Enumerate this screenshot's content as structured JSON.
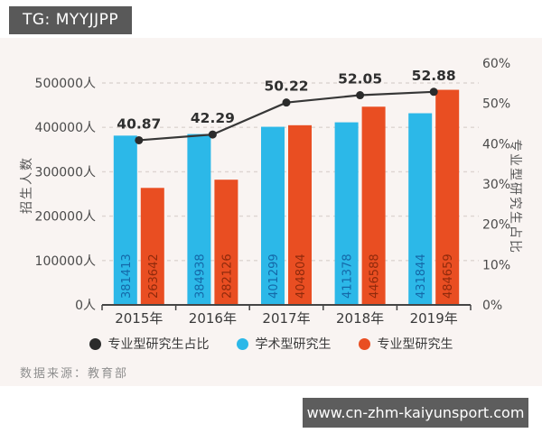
{
  "badge": {
    "text": "TG: MYYJJPP"
  },
  "source": {
    "label": "数据来源：教育部"
  },
  "watermark": {
    "url": "www.cn-zhm-kaiyunsport.com"
  },
  "colors": {
    "page_bg": "#ffffff",
    "panel_bg": "#f9f4f2",
    "badge_bg": "#595959",
    "grid": "#ddd5d1",
    "axis_line": "#454545",
    "axis_text": "#4a4a4a",
    "axis_title_text": "#555555"
  },
  "chart_data": {
    "type": "bar",
    "subtype": "grouped-bars-with-line",
    "categories": [
      "2015年",
      "2016年",
      "2017年",
      "2018年",
      "2019年"
    ],
    "series": [
      {
        "name": "学术型研究生",
        "kind": "bar",
        "color": "#2cb8e8",
        "value_label_color": "#1468a8",
        "values": [
          381413,
          384938,
          401299,
          411378,
          431844
        ]
      },
      {
        "name": "专业型研究生",
        "kind": "bar",
        "color": "#e94e22",
        "value_label_color": "#8f2a0c",
        "values": [
          263642,
          282126,
          404804,
          446588,
          484659
        ]
      },
      {
        "name": "专业型研究生占比",
        "kind": "line",
        "color": "#373737",
        "dot_color": "#2b2b2b",
        "value_label_color": "#2f2f2f",
        "values": [
          40.87,
          42.29,
          50.22,
          52.05,
          52.88
        ]
      }
    ],
    "left_axis": {
      "title": "招生人数",
      "unit": "人",
      "min": 0,
      "max": 500000,
      "ticks": [
        {
          "value": 0,
          "label": "0人"
        },
        {
          "value": 100000,
          "label": "100000人"
        },
        {
          "value": 200000,
          "label": "200000人"
        },
        {
          "value": 300000,
          "label": "300000人"
        },
        {
          "value": 400000,
          "label": "400000人"
        },
        {
          "value": 500000,
          "label": "500000人"
        }
      ]
    },
    "right_axis": {
      "title": "专业型研究生占比",
      "unit": "%",
      "min": 0,
      "max": 60,
      "ticks": [
        {
          "value": 0,
          "label": "0%"
        },
        {
          "value": 10,
          "label": "10%"
        },
        {
          "value": 20,
          "label": "20%"
        },
        {
          "value": 30,
          "label": "30%"
        },
        {
          "value": 40,
          "label": "40%"
        },
        {
          "value": 50,
          "label": "50%"
        },
        {
          "value": 60,
          "label": "60%"
        }
      ]
    },
    "legend": [
      {
        "label": "专业型研究生占比",
        "color": "#2b2b2b"
      },
      {
        "label": "学术型研究生",
        "color": "#2cb8e8"
      },
      {
        "label": "专业型研究生",
        "color": "#e94e22"
      }
    ],
    "grid": "horizontal-dashed",
    "legend_position": "bottom"
  }
}
